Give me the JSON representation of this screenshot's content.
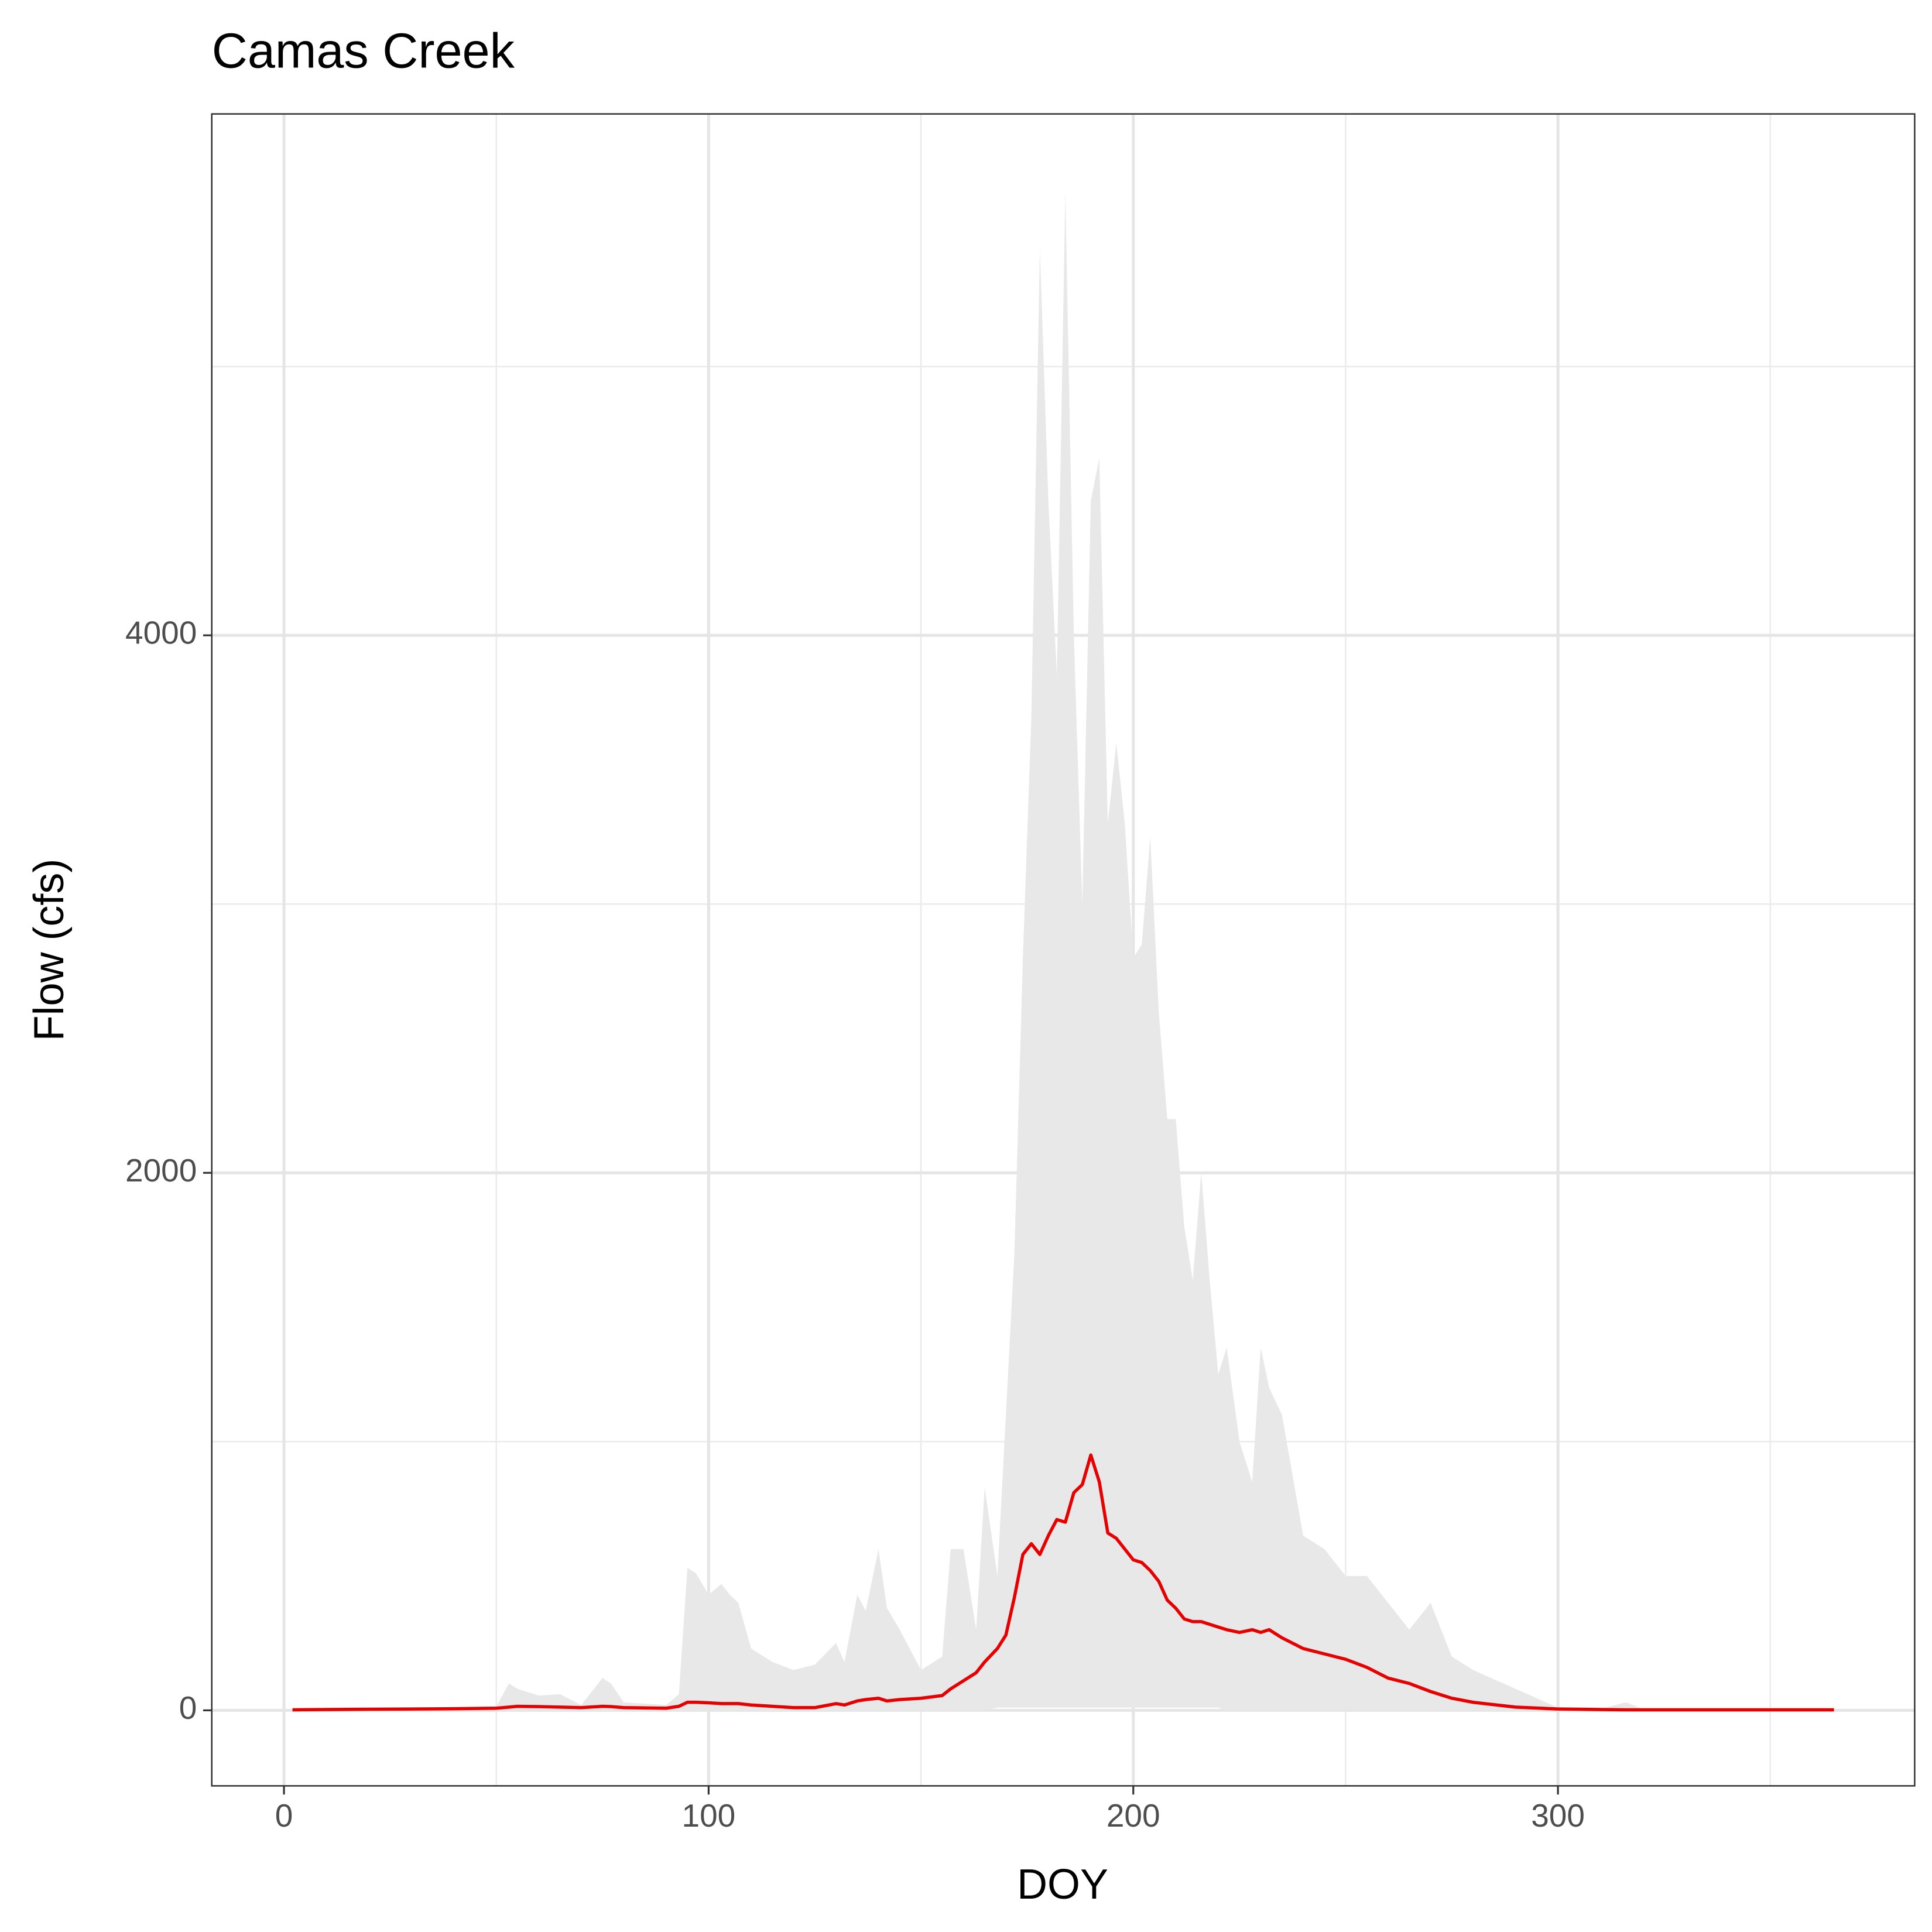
{
  "chart_data": {
    "type": "ribbon-line",
    "title": "Camas Creek",
    "x_label": "DOY",
    "y_label": "Flow (cfs)",
    "x": [
      2,
      10,
      20,
      30,
      40,
      50,
      53,
      55,
      60,
      65,
      70,
      75,
      77,
      80,
      90,
      93,
      95,
      97,
      100,
      103,
      105,
      107,
      110,
      115,
      120,
      125,
      130,
      132,
      135,
      137,
      140,
      142,
      145,
      150,
      155,
      157,
      160,
      163,
      165,
      168,
      170,
      172,
      174,
      176,
      178,
      180,
      182,
      184,
      186,
      188,
      190,
      192,
      194,
      196,
      198,
      200,
      202,
      204,
      206,
      208,
      210,
      212,
      214,
      216,
      218,
      220,
      222,
      225,
      228,
      230,
      232,
      235,
      240,
      245,
      250,
      255,
      260,
      265,
      270,
      275,
      280,
      290,
      300,
      310,
      316,
      320,
      330,
      340,
      350,
      360,
      365
    ],
    "ribbon": {
      "color": "#e8e8e8",
      "upper": [
        5,
        5,
        5,
        8,
        10,
        15,
        100,
        80,
        55,
        60,
        20,
        120,
        100,
        30,
        20,
        60,
        530,
        510,
        430,
        470,
        430,
        400,
        230,
        180,
        150,
        170,
        250,
        180,
        430,
        370,
        600,
        380,
        300,
        150,
        200,
        600,
        600,
        300,
        830,
        500,
        1100,
        1700,
        2800,
        3700,
        5440,
        4500,
        3850,
        5650,
        4000,
        3000,
        4500,
        4660,
        3300,
        3600,
        3300,
        2800,
        2850,
        3250,
        2600,
        2200,
        2200,
        1800,
        1600,
        2000,
        1600,
        1250,
        1350,
        1000,
        850,
        1350,
        1200,
        1100,
        650,
        600,
        500,
        500,
        400,
        300,
        400,
        200,
        150,
        80,
        10,
        5,
        30,
        5,
        5,
        5,
        5,
        5,
        5
      ],
      "lower": [
        0,
        0,
        0,
        0,
        0,
        0,
        0,
        0,
        0,
        0,
        0,
        0,
        0,
        0,
        0,
        0,
        0,
        0,
        0,
        0,
        0,
        0,
        0,
        0,
        0,
        0,
        0,
        0,
        0,
        0,
        0,
        0,
        0,
        0,
        0,
        0,
        0,
        0,
        0,
        10,
        10,
        10,
        10,
        10,
        10,
        10,
        10,
        10,
        10,
        10,
        10,
        10,
        10,
        10,
        10,
        10,
        10,
        10,
        10,
        10,
        10,
        10,
        10,
        10,
        10,
        10,
        0,
        0,
        0,
        0,
        0,
        0,
        0,
        0,
        0,
        0,
        0,
        0,
        0,
        0,
        0,
        0,
        0,
        0,
        0,
        0,
        0,
        0,
        0,
        0,
        0
      ]
    },
    "line": {
      "color": "#e60000",
      "values": [
        2,
        3,
        4,
        5,
        6,
        8,
        12,
        15,
        14,
        12,
        10,
        15,
        14,
        10,
        8,
        15,
        30,
        30,
        28,
        25,
        25,
        25,
        20,
        15,
        10,
        10,
        25,
        20,
        35,
        40,
        45,
        35,
        40,
        45,
        55,
        80,
        110,
        140,
        180,
        230,
        280,
        420,
        580,
        620,
        580,
        650,
        710,
        700,
        810,
        840,
        950,
        850,
        660,
        640,
        600,
        560,
        550,
        520,
        480,
        410,
        380,
        340,
        330,
        330,
        320,
        310,
        300,
        290,
        300,
        290,
        300,
        270,
        230,
        210,
        190,
        160,
        120,
        100,
        70,
        45,
        30,
        12,
        5,
        3,
        2,
        2,
        2,
        2,
        2,
        2,
        2
      ]
    },
    "xlim": [
      -17,
      384
    ],
    "ylim": [
      -281,
      5940
    ],
    "xticks": [
      0,
      100,
      200,
      300
    ],
    "yticks": [
      0,
      2000,
      4000
    ],
    "xminor": [
      50,
      150,
      250,
      350
    ],
    "yminor": [
      1000,
      3000,
      5000
    ],
    "grid": true
  }
}
